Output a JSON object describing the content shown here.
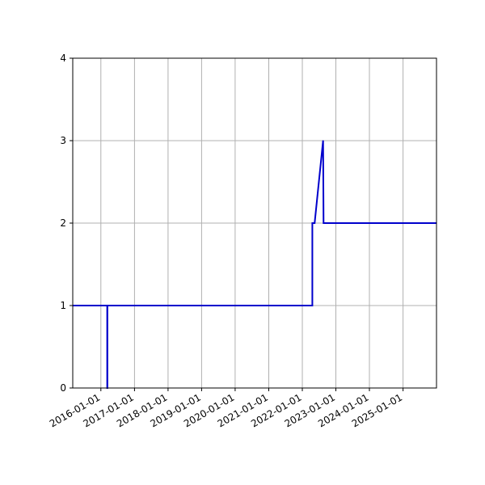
{
  "chart_data": {
    "type": "line",
    "title": "",
    "xlabel": "",
    "ylabel": "",
    "x_axis_type": "date",
    "xlim": [
      "2015-03-01",
      "2025-12-31"
    ],
    "ylim": [
      0,
      4
    ],
    "grid": true,
    "legend": "none",
    "x_ticks": [
      "2016-01-01",
      "2017-01-01",
      "2018-01-01",
      "2019-01-01",
      "2020-01-01",
      "2021-01-01",
      "2022-01-01",
      "2023-01-01",
      "2024-01-01",
      "2025-01-01"
    ],
    "y_ticks": [
      0,
      1,
      2,
      3,
      4
    ],
    "series": [
      {
        "color": "#0000cc",
        "points": [
          [
            "2015-03-01",
            1
          ],
          [
            "2016-03-10",
            1
          ],
          [
            "2016-03-10",
            0
          ],
          [
            "2016-03-12",
            0
          ],
          [
            "2016-03-12",
            1
          ],
          [
            "2022-04-20",
            1
          ],
          [
            "2022-04-20",
            2
          ],
          [
            "2022-05-15",
            2
          ],
          [
            "2022-08-15",
            3
          ],
          [
            "2022-08-20",
            2
          ],
          [
            "2025-12-31",
            2
          ]
        ]
      }
    ]
  }
}
